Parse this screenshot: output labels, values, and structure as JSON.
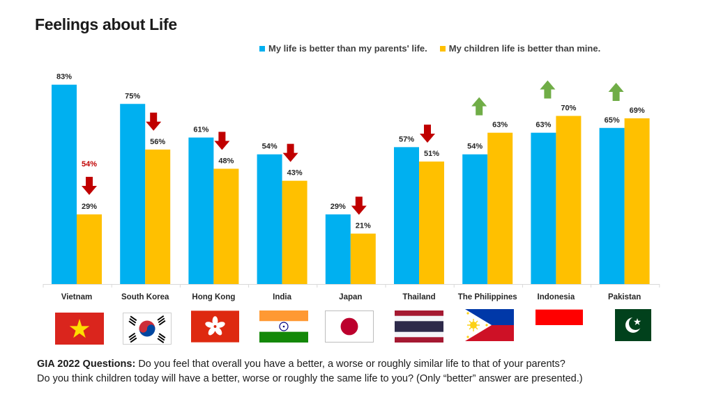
{
  "title": "Feelings about Life",
  "colors": {
    "series1": "#00B0F0",
    "series2": "#FFC000",
    "down_arrow": "#C00000",
    "up_arrow": "#70AD47",
    "note": "#C00000"
  },
  "chart_data": {
    "type": "bar",
    "title": "Feelings about Life",
    "categories": [
      "Vietnam",
      "South Korea",
      "Hong Kong",
      "India",
      "Japan",
      "Thailand",
      "The Philippines",
      "Indonesia",
      "Pakistan"
    ],
    "series": [
      {
        "name": "My life is better than my parents' life.",
        "values": [
          83,
          75,
          61,
          54,
          29,
          57,
          54,
          63,
          65
        ],
        "labels": [
          "83%",
          "75%",
          "61%",
          "54%",
          "29%",
          "57%",
          "54%",
          "63%",
          "65%"
        ]
      },
      {
        "name": "My children life is better than mine.",
        "values": [
          29,
          56,
          48,
          43,
          21,
          51,
          63,
          70,
          69
        ],
        "labels": [
          "29%",
          "56%",
          "48%",
          "43%",
          "21%",
          "51%",
          "63%",
          "70%",
          "69%"
        ]
      }
    ],
    "trend_arrows": [
      "down",
      "down",
      "down",
      "down",
      "down",
      "down",
      "up",
      "up",
      "up"
    ],
    "annotations": [
      {
        "category": "Vietnam",
        "text": "54%"
      }
    ],
    "ylim": [
      0,
      100
    ],
    "legend": "top-right",
    "grid": false
  },
  "flags": [
    "vietnam-flag",
    "south-korea-flag",
    "hong-kong-flag",
    "india-flag",
    "japan-flag",
    "thailand-flag",
    "philippines-flag",
    "indonesia-flag",
    "pakistan-flag"
  ],
  "footnote": {
    "bold": "GIA 2022 Questions:",
    "line1": " Do you feel that overall you have a better, a worse or roughly similar life to that of your parents?",
    "line2": "Do you think children today will have a better, worse or roughly the same life to you? (Only “better” answer are presented.)"
  }
}
